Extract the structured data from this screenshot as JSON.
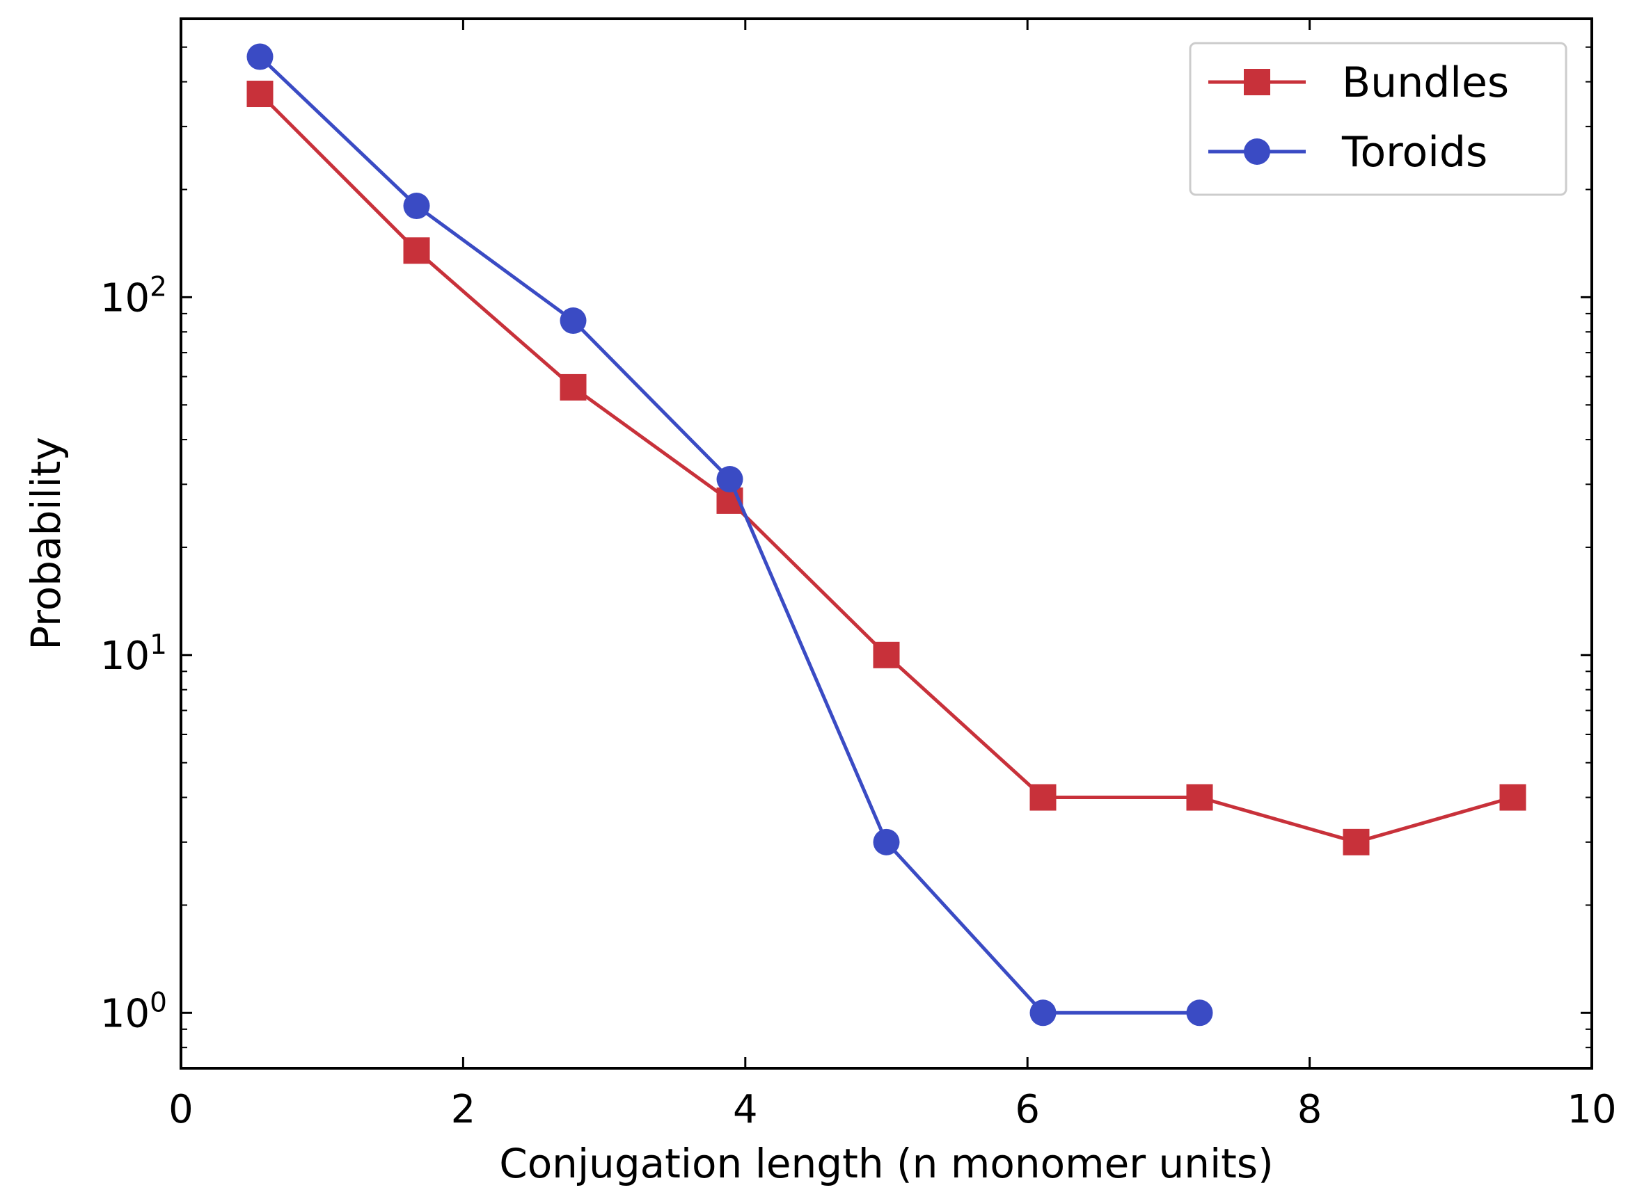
{
  "chart_data": {
    "type": "line",
    "title": "",
    "xlabel": "Conjugation length (n monomer units)",
    "ylabel": "Probability",
    "xlim": [
      0,
      10
    ],
    "ylim": [
      0.7,
      600
    ],
    "yscale": "log",
    "grid": false,
    "legend_location": "upper right",
    "x_ticks": [
      0,
      2,
      4,
      6,
      8,
      10
    ],
    "x_tick_labels": [
      "0",
      "2",
      "4",
      "6",
      "8",
      "10"
    ],
    "y_ticks": [
      1,
      10,
      100
    ],
    "y_tick_labels": [
      {
        "base": "10",
        "exponent": "0"
      },
      {
        "base": "10",
        "exponent": "1"
      },
      {
        "base": "10",
        "exponent": "2"
      }
    ],
    "series": [
      {
        "name": "Bundles",
        "color": "#c8313a",
        "marker": "square",
        "x": [
          0.56,
          1.67,
          2.78,
          3.89,
          5.0,
          6.11,
          7.22,
          8.33,
          9.44
        ],
        "values": [
          370,
          135,
          56,
          27,
          10,
          4,
          4,
          3,
          4
        ]
      },
      {
        "name": "Toroids",
        "color": "#3a4bc4",
        "marker": "circle",
        "x": [
          0.56,
          1.67,
          2.78,
          3.89,
          5.0,
          6.11,
          7.22
        ],
        "values": [
          470,
          180,
          86,
          31,
          3,
          1,
          1
        ]
      }
    ]
  }
}
